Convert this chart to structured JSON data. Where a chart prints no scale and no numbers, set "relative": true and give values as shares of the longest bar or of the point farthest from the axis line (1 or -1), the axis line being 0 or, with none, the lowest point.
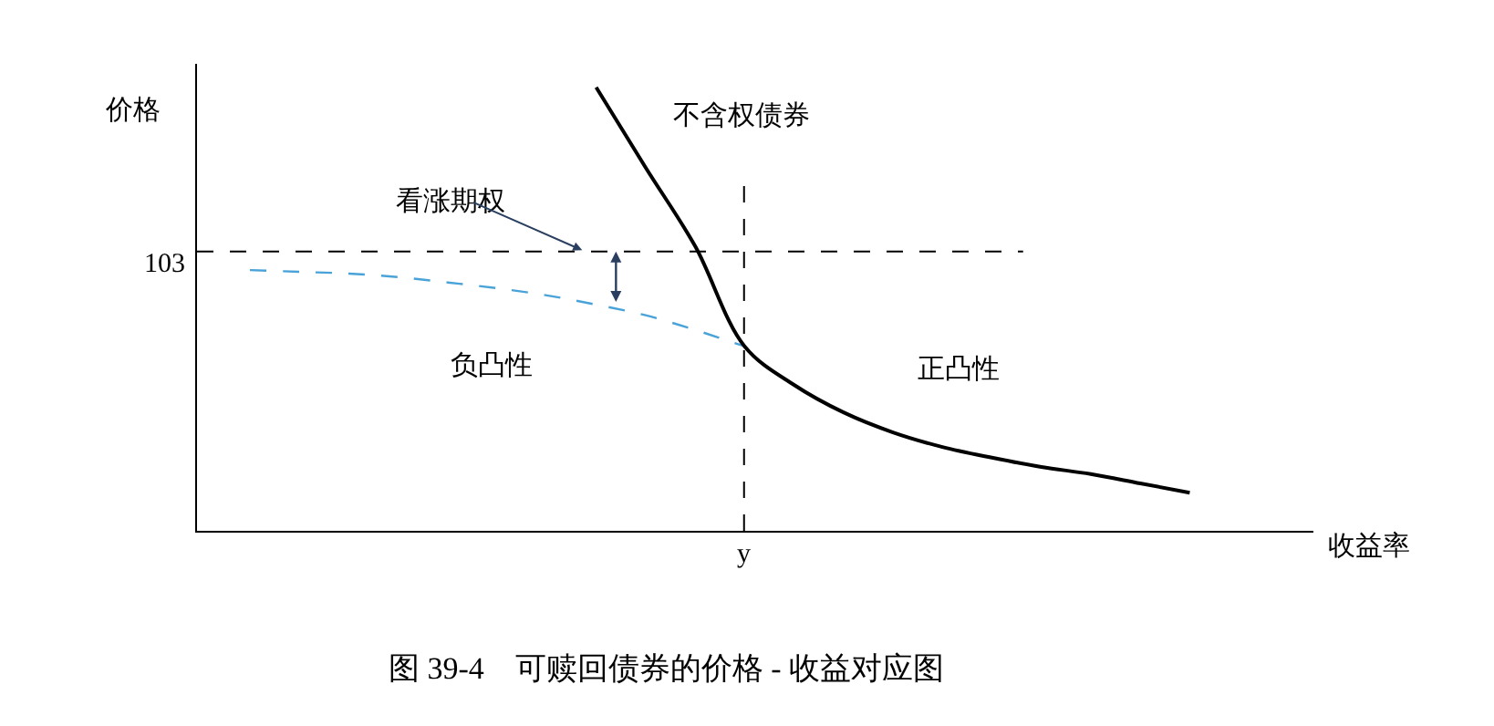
{
  "chart_data": {
    "type": "line",
    "relative": true,
    "categories": [
      null,
      null,
      null,
      null,
      null,
      null,
      null,
      null,
      null,
      null,
      null,
      null,
      null,
      null,
      null,
      null,
      null,
      null,
      null,
      null
    ],
    "series": [
      {
        "color": "#4aa3d8",
        "line_style": "dashed",
        "values": [
          0.588,
          0.584,
          0.58,
          0.572,
          0.56,
          0.547,
          0.531,
          0.51,
          0.486,
          0.453,
          0.416,
          null,
          null,
          null,
          null,
          null,
          null,
          null,
          null,
          null
        ]
      },
      {
        "color": "#000000",
        "line_style": "solid",
        "values": [
          null,
          null,
          null,
          null,
          null,
          null,
          null,
          1.0,
          0.819,
          0.642,
          0.416,
          0.329,
          0.267,
          0.222,
          0.189,
          0.165,
          0.144,
          0.128,
          0.107,
          0.086
        ]
      }
    ],
    "xlabel": "收益率",
    "ylabel": "价格",
    "annotations": [
      "不含权债券",
      "看涨期权",
      "负凸性",
      "正凸性",
      "图 39-4　可赎回债券的价格 - 收益对应图",
      "103",
      "y"
    ],
    "legend": false,
    "tick_labels": false,
    "marker": "none"
  }
}
